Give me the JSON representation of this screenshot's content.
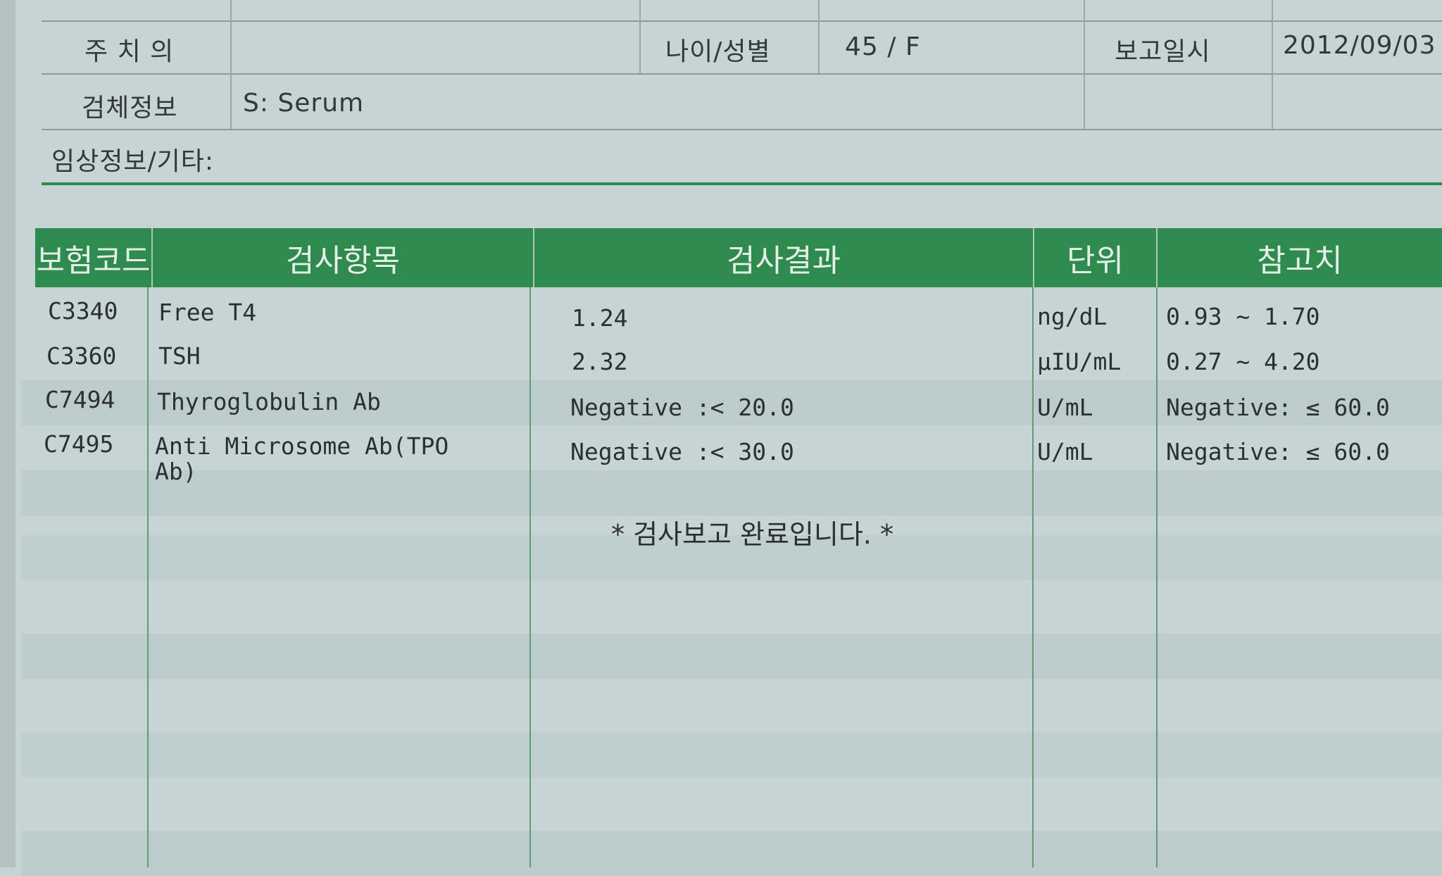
{
  "patient_info": {
    "attending_label": "주 치 의",
    "attending_value": "",
    "age_sex_label": "나이/성별",
    "age_sex_value": "45  /  F",
    "report_date_label": "보고일시",
    "report_date_value": "2012/09/03",
    "specimen_label": "검체정보",
    "specimen_value": "S: Serum",
    "clinical_label": "임상정보/기타:"
  },
  "results_table": {
    "headers": [
      "보험코드",
      "검사항목",
      "검사결과",
      "단위",
      "참고치"
    ],
    "rows": [
      {
        "code": "C3340",
        "item": "Free T4",
        "result": "1.24",
        "unit": "ng/dL",
        "reference": "0.93 ~ 1.70"
      },
      {
        "code": "C3360",
        "item": "TSH",
        "result": "2.32",
        "unit": "µIU/mL",
        "reference": "0.27 ~ 4.20"
      },
      {
        "code": "C7494",
        "item": "Thyroglobulin Ab",
        "result": "Negative :< 20.0",
        "unit": "U/mL",
        "reference": "Negative: ≤ 60.0"
      },
      {
        "code": "C7495",
        "item": "Anti Microsome Ab(TPO\nAb)",
        "result": "Negative :< 30.0",
        "unit": "U/mL",
        "reference": "Negative: ≤ 60.0"
      }
    ],
    "completion_message": "* 검사보고 완료입니다. *"
  },
  "colors": {
    "header_green": "#2f8a4f",
    "paper": "#c6d4d5"
  }
}
